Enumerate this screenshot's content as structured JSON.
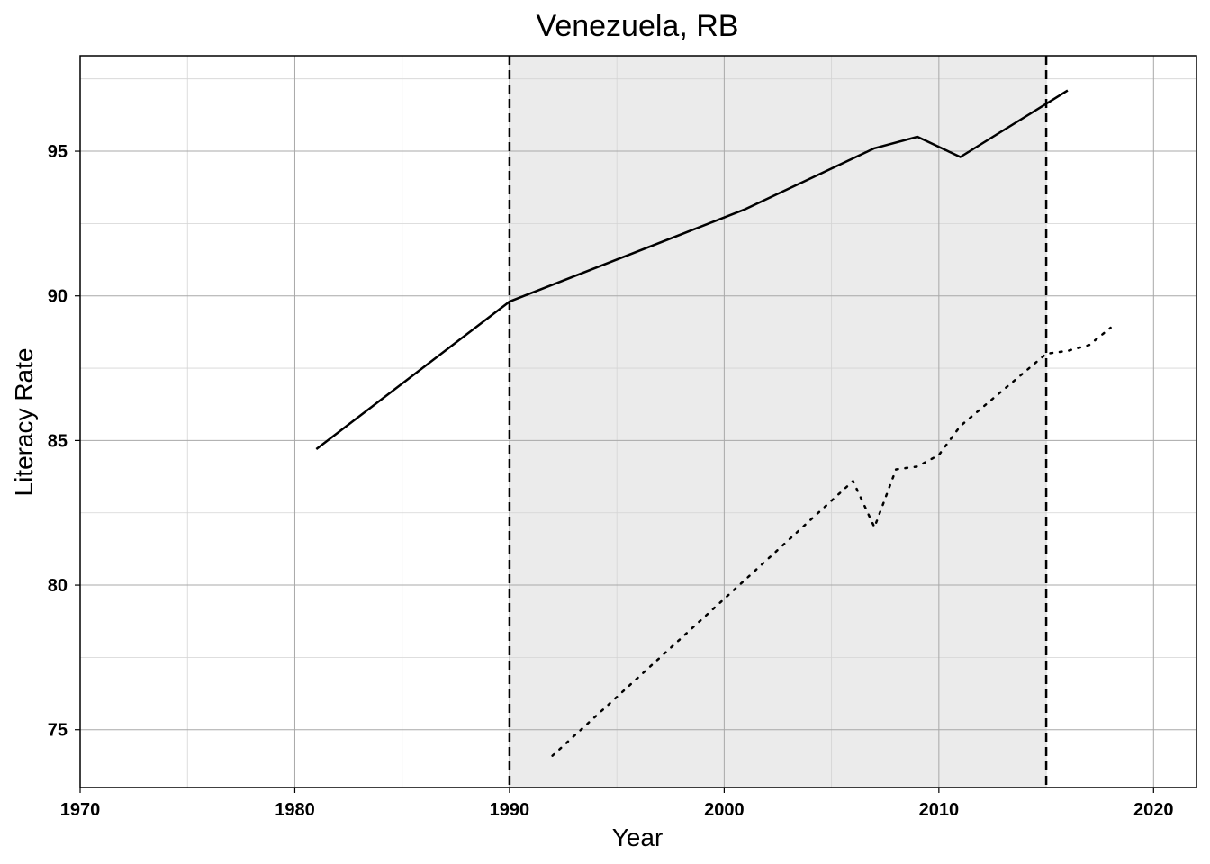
{
  "chart_data": {
    "type": "line",
    "title": "Venezuela, RB",
    "xlabel": "Year",
    "ylabel": "Literacy Rate",
    "xlim": [
      1970,
      2022
    ],
    "ylim": [
      73,
      98.3
    ],
    "x_ticks": [
      1970,
      1980,
      1990,
      2000,
      2010,
      2020
    ],
    "y_ticks": [
      75,
      80,
      85,
      90,
      95
    ],
    "grid": true,
    "shaded_region": {
      "x_start": 1990,
      "x_end": 2015,
      "color": "#ebebeb"
    },
    "vertical_lines": [
      {
        "x": 1990,
        "style": "dashed"
      },
      {
        "x": 2015,
        "style": "dashed"
      }
    ],
    "series": [
      {
        "style": "solid",
        "x": [
          1981,
          1990,
          2001,
          2007,
          2009,
          2011,
          2016
        ],
        "y": [
          84.7,
          89.8,
          93.0,
          95.1,
          95.5,
          94.8,
          97.1
        ]
      },
      {
        "style": "dotted",
        "x": [
          1992,
          2001,
          2006,
          2007,
          2008,
          2009,
          2010,
          2011,
          2015,
          2016,
          2017,
          2018
        ],
        "y": [
          74.1,
          80.2,
          83.6,
          82.0,
          84.0,
          84.1,
          84.5,
          85.5,
          88.0,
          88.1,
          88.3,
          88.9
        ]
      }
    ]
  }
}
